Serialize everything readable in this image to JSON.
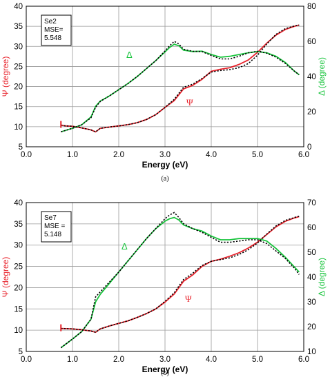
{
  "colors": {
    "psi": "#e8222b",
    "delta": "#18c43c",
    "fit": "#000000",
    "grid": "#9a9a9a"
  },
  "chart_data": [
    {
      "type": "line",
      "caption": "(a)",
      "xlabel": "Energy (eV)",
      "ylabel_left": "Ψ (degree)",
      "ylabel_right": "Δ (degree)",
      "xlim": [
        0.0,
        6.0
      ],
      "ylim_left": [
        5,
        40
      ],
      "ylim_right": [
        0,
        80
      ],
      "x_ticks": [
        "0.0",
        "1.0",
        "2.0",
        "3.0",
        "4.0",
        "5.0",
        "6.0"
      ],
      "y_ticks_left": [
        "5",
        "10",
        "15",
        "20",
        "25",
        "30",
        "35",
        "40"
      ],
      "y_ticks_right": [
        "0",
        "20",
        "40",
        "60",
        "80"
      ],
      "grid": true,
      "info_box": {
        "lines": [
          "Se2",
          "MSE=",
          "5.548"
        ]
      },
      "annotations": {
        "psi": "Ψ",
        "delta": "Δ"
      },
      "series": [
        {
          "name": "Ψ",
          "role": "psi-exp",
          "axis": "left",
          "x": [
            0.75,
            0.85,
            1.0,
            1.2,
            1.4,
            1.5,
            1.6,
            1.8,
            2.0,
            2.2,
            2.4,
            2.6,
            2.8,
            3.0,
            3.2,
            3.4,
            3.6,
            3.8,
            4.0,
            4.2,
            4.4,
            4.6,
            4.8,
            5.0,
            5.2,
            5.4,
            5.6,
            5.8,
            5.9
          ],
          "y": [
            10.4,
            10.2,
            10.1,
            9.7,
            9.2,
            8.7,
            9.6,
            9.9,
            10.2,
            10.5,
            11.0,
            11.8,
            13.0,
            14.8,
            16.5,
            19.4,
            20.3,
            21.8,
            23.8,
            24.3,
            24.7,
            25.5,
            26.6,
            28.5,
            30.8,
            32.8,
            34.2,
            35.0,
            35.3
          ]
        },
        {
          "name": "Δ",
          "role": "delta-exp",
          "axis": "right",
          "x": [
            0.75,
            1.0,
            1.2,
            1.4,
            1.5,
            1.6,
            1.8,
            2.0,
            2.2,
            2.4,
            2.6,
            2.8,
            3.0,
            3.1,
            3.2,
            3.3,
            3.4,
            3.6,
            3.8,
            4.0,
            4.2,
            4.4,
            4.6,
            4.8,
            5.0,
            5.2,
            5.4,
            5.6,
            5.8,
            5.9
          ],
          "y": [
            8.5,
            10.5,
            12.5,
            17.0,
            23.0,
            26.0,
            29.0,
            32.5,
            36.0,
            40.0,
            44.5,
            49.0,
            54.0,
            56.5,
            58.4,
            57.5,
            55.0,
            54.2,
            54.4,
            52.5,
            51.0,
            51.5,
            52.5,
            53.5,
            54.2,
            53.5,
            51.5,
            48.0,
            43.0,
            41.0
          ]
        },
        {
          "name": "fit",
          "role": "fit",
          "axis": "left",
          "x": [
            0.75,
            0.85,
            1.0,
            1.2,
            1.4,
            1.5,
            1.6,
            1.8,
            2.0,
            2.2,
            2.4,
            2.6,
            2.8,
            3.0,
            3.2,
            3.4,
            3.6,
            3.8,
            4.0,
            4.2,
            4.4,
            4.6,
            4.8,
            5.0,
            5.2,
            5.4,
            5.6,
            5.8,
            5.9
          ],
          "y": [
            10.4,
            10.2,
            10.1,
            9.7,
            9.2,
            8.7,
            9.6,
            9.9,
            10.2,
            10.5,
            11.0,
            11.8,
            13.0,
            14.8,
            16.8,
            19.8,
            20.6,
            22.0,
            23.6,
            24.0,
            24.2,
            24.7,
            25.7,
            27.8,
            30.6,
            33.0,
            34.4,
            35.1,
            35.3
          ]
        },
        {
          "name": "fit",
          "role": "fit",
          "axis": "right",
          "x": [
            0.75,
            1.0,
            1.2,
            1.4,
            1.5,
            1.6,
            1.8,
            2.0,
            2.2,
            2.4,
            2.6,
            2.8,
            3.0,
            3.1,
            3.2,
            3.3,
            3.4,
            3.6,
            3.8,
            4.0,
            4.2,
            4.4,
            4.6,
            4.8,
            5.0,
            5.2,
            5.4,
            5.6,
            5.8,
            5.9
          ],
          "y": [
            8.5,
            10.5,
            12.5,
            16.5,
            22.5,
            25.8,
            29.0,
            32.5,
            36.0,
            40.0,
            44.5,
            49.0,
            54.5,
            57.5,
            60.0,
            58.5,
            55.5,
            54.3,
            54.2,
            52.0,
            50.0,
            50.0,
            51.5,
            53.5,
            54.3,
            53.3,
            51.0,
            47.5,
            43.0,
            41.0
          ]
        }
      ]
    },
    {
      "type": "line",
      "caption": "(b)",
      "xlabel": "Energy (eV)",
      "ylabel_left": "Ψ (degree)",
      "ylabel_right": "Δ (degree)",
      "xlim": [
        0.0,
        6.0
      ],
      "ylim_left": [
        5,
        40
      ],
      "ylim_right": [
        10,
        70
      ],
      "x_ticks": [
        "0.0",
        "1.0",
        "2.0",
        "3.0",
        "4.0",
        "5.0",
        "6.0"
      ],
      "y_ticks_left": [
        "5",
        "10",
        "15",
        "20",
        "25",
        "30",
        "35",
        "40"
      ],
      "y_ticks_right": [
        "10",
        "20",
        "30",
        "40",
        "50",
        "60",
        "70"
      ],
      "grid": true,
      "info_box": {
        "lines": [
          "Se7",
          "MSE =",
          "5.148"
        ]
      },
      "annotations": {
        "psi": "Ψ",
        "delta": "Δ"
      },
      "series": [
        {
          "name": "Ψ",
          "role": "psi-exp",
          "axis": "left",
          "x": [
            0.75,
            1.0,
            1.2,
            1.4,
            1.5,
            1.6,
            1.8,
            2.0,
            2.2,
            2.4,
            2.6,
            2.8,
            3.0,
            3.2,
            3.4,
            3.6,
            3.8,
            4.0,
            4.2,
            4.4,
            4.6,
            4.8,
            5.0,
            5.2,
            5.4,
            5.6,
            5.8,
            5.9
          ],
          "y": [
            10.4,
            10.3,
            10.1,
            9.8,
            9.5,
            10.3,
            11.0,
            11.6,
            12.2,
            13.0,
            13.9,
            15.0,
            16.6,
            18.5,
            21.5,
            23.0,
            25.0,
            26.2,
            26.7,
            27.4,
            28.2,
            29.3,
            30.7,
            32.5,
            34.3,
            35.6,
            36.4,
            36.7
          ]
        },
        {
          "name": "Δ",
          "role": "delta-exp",
          "axis": "right",
          "x": [
            0.75,
            1.0,
            1.2,
            1.4,
            1.5,
            1.6,
            1.8,
            2.0,
            2.2,
            2.4,
            2.6,
            2.8,
            3.0,
            3.1,
            3.2,
            3.3,
            3.4,
            3.6,
            3.8,
            4.0,
            4.2,
            4.4,
            4.6,
            4.8,
            5.0,
            5.2,
            5.4,
            5.6,
            5.8,
            5.9
          ],
          "y": [
            11.5,
            15.0,
            18.0,
            23.0,
            30.0,
            33.0,
            37.5,
            42.0,
            46.5,
            51.0,
            55.5,
            59.5,
            62.5,
            63.5,
            64.0,
            63.0,
            61.0,
            59.5,
            58.5,
            56.5,
            55.0,
            55.0,
            55.5,
            55.5,
            55.5,
            54.5,
            51.5,
            48.0,
            44.0,
            42.0
          ]
        },
        {
          "name": "fit",
          "role": "fit",
          "axis": "left",
          "x": [
            0.75,
            1.0,
            1.2,
            1.4,
            1.5,
            1.6,
            1.8,
            2.0,
            2.2,
            2.4,
            2.6,
            2.8,
            3.0,
            3.2,
            3.4,
            3.6,
            3.8,
            4.0,
            4.2,
            4.4,
            4.6,
            4.8,
            5.0,
            5.2,
            5.4,
            5.6,
            5.8,
            5.9
          ],
          "y": [
            10.4,
            10.3,
            10.1,
            9.8,
            9.5,
            10.3,
            11.0,
            11.6,
            12.2,
            13.0,
            13.9,
            15.0,
            16.8,
            18.8,
            21.9,
            23.4,
            25.2,
            26.2,
            26.6,
            27.0,
            27.8,
            28.9,
            30.5,
            32.6,
            34.5,
            35.8,
            36.5,
            36.8
          ]
        },
        {
          "name": "fit",
          "role": "fit",
          "axis": "right",
          "x": [
            0.75,
            1.0,
            1.2,
            1.4,
            1.5,
            1.6,
            1.8,
            2.0,
            2.2,
            2.4,
            2.6,
            2.8,
            3.0,
            3.1,
            3.2,
            3.3,
            3.4,
            3.6,
            3.8,
            4.0,
            4.2,
            4.4,
            4.6,
            4.8,
            5.0,
            5.2,
            5.4,
            5.6,
            5.8,
            5.9
          ],
          "y": [
            11.5,
            15.0,
            18.0,
            23.0,
            32.0,
            34.0,
            38.0,
            42.0,
            46.5,
            51.0,
            55.5,
            59.5,
            63.5,
            65.0,
            66.0,
            64.0,
            61.5,
            59.5,
            58.0,
            56.0,
            54.0,
            54.0,
            54.5,
            55.0,
            55.0,
            53.5,
            50.5,
            47.5,
            43.5,
            41.0
          ]
        }
      ]
    }
  ]
}
